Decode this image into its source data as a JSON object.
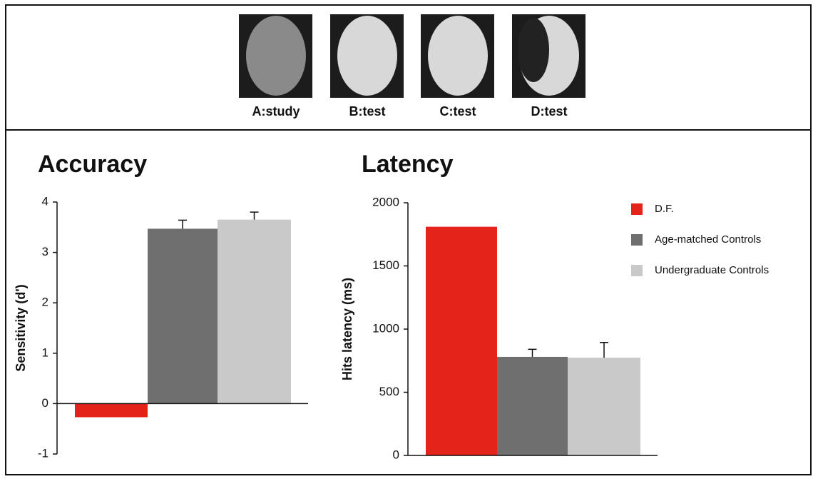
{
  "faces": {
    "labels": [
      "A:study",
      "B:test",
      "C:test",
      "D:test"
    ]
  },
  "chart_data": [
    {
      "type": "bar",
      "title": "Accuracy",
      "y_label": "Sensitivity (d')",
      "ylim": [
        -1,
        4
      ],
      "yticks": [
        -1,
        0,
        1,
        2,
        3,
        4
      ],
      "series": [
        {
          "color": "#e4231b",
          "values": [
            -0.27
          ]
        },
        {
          "color": "#6f6f6f",
          "values": [
            3.47
          ],
          "errors": [
            0.17
          ]
        },
        {
          "color": "#c9c9c9",
          "values": [
            3.65
          ],
          "errors": [
            0.15
          ]
        }
      ]
    },
    {
      "type": "bar",
      "title": "Latency",
      "y_label": "Hits latency (ms)",
      "ylim": [
        0,
        2000
      ],
      "yticks": [
        0,
        500,
        1000,
        1500,
        2000
      ],
      "legend": "upper right",
      "series": [
        {
          "name": "D.F.",
          "color": "#e4231b",
          "values": [
            1810
          ]
        },
        {
          "name": "Age-matched Controls",
          "color": "#6f6f6f",
          "values": [
            780
          ],
          "errors": [
            60
          ]
        },
        {
          "name": "Undergraduate Controls",
          "color": "#c9c9c9",
          "values": [
            774
          ],
          "errors": [
            120
          ]
        }
      ]
    }
  ]
}
